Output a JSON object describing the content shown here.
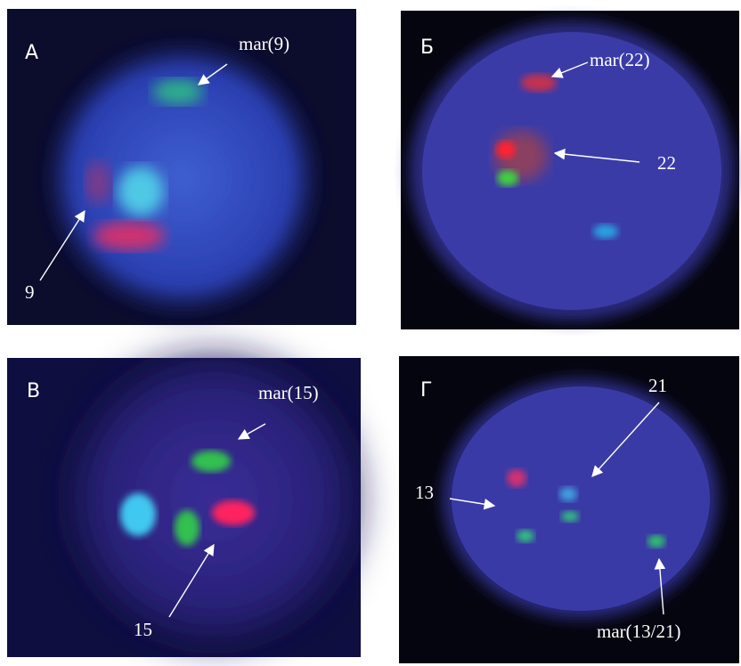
{
  "panels": [
    {
      "label": "А",
      "annotations": [
        "mar(9)",
        "9"
      ]
    },
    {
      "label": "Б",
      "annotations": [
        "mar(22)",
        "22"
      ]
    },
    {
      "label": "В",
      "annotations": [
        "mar(15)",
        "15"
      ]
    },
    {
      "label": "Г",
      "annotations": [
        "21",
        "13",
        "mar(13/21)"
      ]
    }
  ]
}
